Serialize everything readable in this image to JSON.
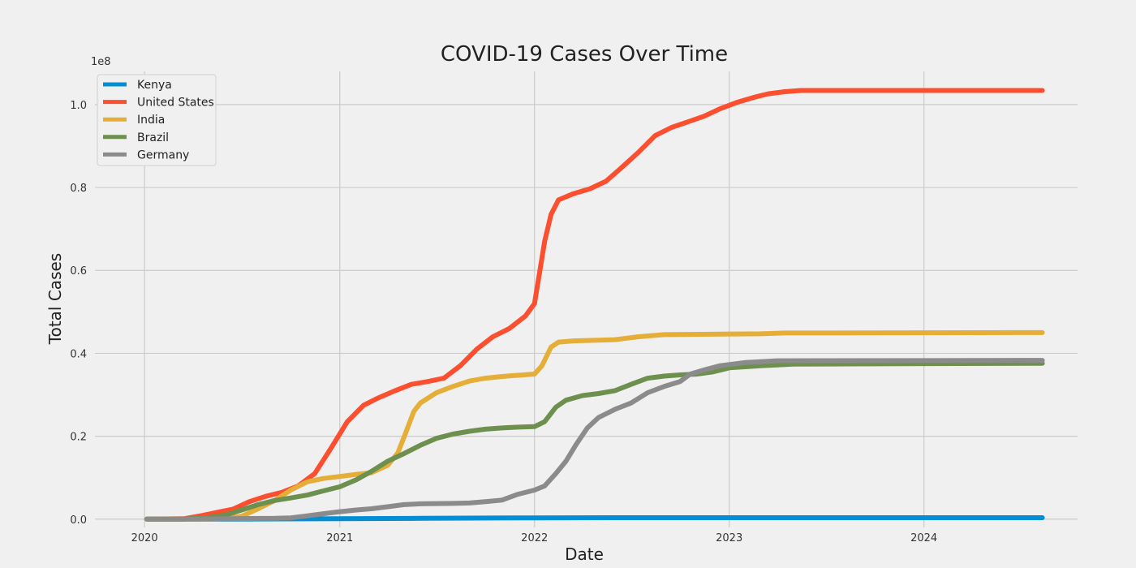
{
  "chart_data": {
    "type": "line",
    "title": "COVID-19 Cases Over Time",
    "xlabel": "Date",
    "ylabel": "Total Cases",
    "y_offset_label": "1e8",
    "grid": true,
    "legend_position": "top-left",
    "xlim": [
      "2019-09-30",
      "2024-10-15"
    ],
    "ylim": [
      -0.02,
      1.08
    ],
    "x_ticks": [
      {
        "date": "2020-01-01",
        "label": "2020"
      },
      {
        "date": "2021-01-01",
        "label": "2021"
      },
      {
        "date": "2022-01-01",
        "label": "2022"
      },
      {
        "date": "2023-01-01",
        "label": "2023"
      },
      {
        "date": "2024-01-01",
        "label": "2024"
      }
    ],
    "y_ticks": [
      {
        "value": 0.0,
        "label": "0.0"
      },
      {
        "value": 0.2,
        "label": "0.2"
      },
      {
        "value": 0.4,
        "label": "0.4"
      },
      {
        "value": 0.6,
        "label": "0.6"
      },
      {
        "value": 0.8,
        "label": "0.8"
      },
      {
        "value": 1.0,
        "label": "1.0"
      }
    ],
    "series": [
      {
        "name": "Kenya",
        "color": "#008fd5",
        "points": [
          [
            "2020-01-05",
            0.0
          ],
          [
            "2020-06-01",
            0.0
          ],
          [
            "2021-01-01",
            0.001
          ],
          [
            "2021-06-01",
            0.002
          ],
          [
            "2022-01-01",
            0.003
          ],
          [
            "2022-06-01",
            0.0034
          ],
          [
            "2023-01-01",
            0.0034
          ],
          [
            "2024-08-10",
            0.0034
          ]
        ]
      },
      {
        "name": "United States",
        "color": "#fc4f30",
        "points": [
          [
            "2020-01-05",
            0.0
          ],
          [
            "2020-03-15",
            0.001
          ],
          [
            "2020-04-15",
            0.008
          ],
          [
            "2020-05-15",
            0.016
          ],
          [
            "2020-06-15",
            0.024
          ],
          [
            "2020-07-15",
            0.042
          ],
          [
            "2020-08-15",
            0.055
          ],
          [
            "2020-09-15",
            0.065
          ],
          [
            "2020-10-15",
            0.08
          ],
          [
            "2020-11-15",
            0.11
          ],
          [
            "2020-12-15",
            0.17
          ],
          [
            "2021-01-15",
            0.235
          ],
          [
            "2021-02-15",
            0.275
          ],
          [
            "2021-03-15",
            0.293
          ],
          [
            "2021-04-15",
            0.31
          ],
          [
            "2021-05-15",
            0.325
          ],
          [
            "2021-06-15",
            0.332
          ],
          [
            "2021-07-15",
            0.34
          ],
          [
            "2021-08-15",
            0.37
          ],
          [
            "2021-09-15",
            0.41
          ],
          [
            "2021-10-15",
            0.44
          ],
          [
            "2021-11-15",
            0.46
          ],
          [
            "2021-12-15",
            0.49
          ],
          [
            "2022-01-01",
            0.52
          ],
          [
            "2022-01-10",
            0.59
          ],
          [
            "2022-01-20",
            0.67
          ],
          [
            "2022-02-01",
            0.735
          ],
          [
            "2022-02-15",
            0.77
          ],
          [
            "2022-03-15",
            0.785
          ],
          [
            "2022-04-15",
            0.797
          ],
          [
            "2022-05-15",
            0.815
          ],
          [
            "2022-06-15",
            0.85
          ],
          [
            "2022-07-15",
            0.885
          ],
          [
            "2022-08-15",
            0.925
          ],
          [
            "2022-09-15",
            0.945
          ],
          [
            "2022-10-15",
            0.958
          ],
          [
            "2022-11-15",
            0.972
          ],
          [
            "2022-12-15",
            0.99
          ],
          [
            "2023-01-15",
            1.005
          ],
          [
            "2023-02-15",
            1.017
          ],
          [
            "2023-03-15",
            1.026
          ],
          [
            "2023-04-15",
            1.031
          ],
          [
            "2023-05-15",
            1.034
          ],
          [
            "2024-08-10",
            1.034
          ]
        ]
      },
      {
        "name": "India",
        "color": "#e5ae38",
        "points": [
          [
            "2020-01-05",
            0.0
          ],
          [
            "2020-05-01",
            0.0
          ],
          [
            "2020-06-01",
            0.002
          ],
          [
            "2020-07-01",
            0.007
          ],
          [
            "2020-08-01",
            0.025
          ],
          [
            "2020-09-01",
            0.045
          ],
          [
            "2020-10-01",
            0.07
          ],
          [
            "2020-11-01",
            0.09
          ],
          [
            "2020-12-01",
            0.098
          ],
          [
            "2021-01-01",
            0.103
          ],
          [
            "2021-02-01",
            0.108
          ],
          [
            "2021-03-01",
            0.112
          ],
          [
            "2021-04-01",
            0.13
          ],
          [
            "2021-04-20",
            0.16
          ],
          [
            "2021-05-05",
            0.21
          ],
          [
            "2021-05-20",
            0.26
          ],
          [
            "2021-06-01",
            0.28
          ],
          [
            "2021-07-01",
            0.305
          ],
          [
            "2021-08-01",
            0.32
          ],
          [
            "2021-09-01",
            0.333
          ],
          [
            "2021-10-01",
            0.34
          ],
          [
            "2021-11-01",
            0.344
          ],
          [
            "2021-12-01",
            0.347
          ],
          [
            "2022-01-01",
            0.35
          ],
          [
            "2022-01-15",
            0.37
          ],
          [
            "2022-02-01",
            0.415
          ],
          [
            "2022-02-15",
            0.427
          ],
          [
            "2022-03-15",
            0.43
          ],
          [
            "2022-06-01",
            0.433
          ],
          [
            "2022-07-15",
            0.44
          ],
          [
            "2022-09-01",
            0.445
          ],
          [
            "2022-12-01",
            0.446
          ],
          [
            "2023-03-01",
            0.447
          ],
          [
            "2023-04-15",
            0.449
          ],
          [
            "2024-08-10",
            0.45
          ]
        ]
      },
      {
        "name": "Brazil",
        "color": "#6d904f",
        "points": [
          [
            "2020-01-05",
            0.0
          ],
          [
            "2020-03-15",
            0.0
          ],
          [
            "2020-05-01",
            0.004
          ],
          [
            "2020-06-01",
            0.01
          ],
          [
            "2020-07-01",
            0.022
          ],
          [
            "2020-08-01",
            0.035
          ],
          [
            "2020-09-01",
            0.045
          ],
          [
            "2020-10-01",
            0.051
          ],
          [
            "2020-11-01",
            0.058
          ],
          [
            "2020-12-01",
            0.068
          ],
          [
            "2021-01-01",
            0.078
          ],
          [
            "2021-02-01",
            0.095
          ],
          [
            "2021-03-01",
            0.115
          ],
          [
            "2021-04-01",
            0.14
          ],
          [
            "2021-05-01",
            0.158
          ],
          [
            "2021-06-01",
            0.178
          ],
          [
            "2021-07-01",
            0.195
          ],
          [
            "2021-08-01",
            0.205
          ],
          [
            "2021-09-01",
            0.212
          ],
          [
            "2021-10-01",
            0.217
          ],
          [
            "2021-11-01",
            0.22
          ],
          [
            "2021-12-01",
            0.222
          ],
          [
            "2022-01-01",
            0.223
          ],
          [
            "2022-01-20",
            0.235
          ],
          [
            "2022-02-10",
            0.27
          ],
          [
            "2022-03-01",
            0.287
          ],
          [
            "2022-04-01",
            0.298
          ],
          [
            "2022-05-01",
            0.303
          ],
          [
            "2022-06-01",
            0.31
          ],
          [
            "2022-07-01",
            0.325
          ],
          [
            "2022-08-01",
            0.34
          ],
          [
            "2022-09-01",
            0.345
          ],
          [
            "2022-10-01",
            0.348
          ],
          [
            "2022-11-01",
            0.35
          ],
          [
            "2022-12-01",
            0.355
          ],
          [
            "2023-01-01",
            0.365
          ],
          [
            "2023-03-01",
            0.37
          ],
          [
            "2023-05-01",
            0.374
          ],
          [
            "2024-08-10",
            0.376
          ]
        ]
      },
      {
        "name": "Germany",
        "color": "#8b8b8b",
        "points": [
          [
            "2020-01-05",
            0.0
          ],
          [
            "2020-03-01",
            0.0
          ],
          [
            "2020-06-01",
            0.001
          ],
          [
            "2020-09-01",
            0.002
          ],
          [
            "2020-10-01",
            0.003
          ],
          [
            "2020-11-01",
            0.008
          ],
          [
            "2020-12-01",
            0.013
          ],
          [
            "2021-01-01",
            0.018
          ],
          [
            "2021-02-01",
            0.022
          ],
          [
            "2021-03-01",
            0.025
          ],
          [
            "2021-04-01",
            0.03
          ],
          [
            "2021-05-01",
            0.035
          ],
          [
            "2021-06-01",
            0.037
          ],
          [
            "2021-08-01",
            0.038
          ],
          [
            "2021-09-01",
            0.039
          ],
          [
            "2021-10-01",
            0.042
          ],
          [
            "2021-11-01",
            0.046
          ],
          [
            "2021-12-01",
            0.06
          ],
          [
            "2022-01-01",
            0.07
          ],
          [
            "2022-01-20",
            0.08
          ],
          [
            "2022-02-10",
            0.11
          ],
          [
            "2022-03-01",
            0.14
          ],
          [
            "2022-03-20",
            0.18
          ],
          [
            "2022-04-10",
            0.22
          ],
          [
            "2022-05-01",
            0.245
          ],
          [
            "2022-06-01",
            0.265
          ],
          [
            "2022-07-01",
            0.28
          ],
          [
            "2022-08-01",
            0.305
          ],
          [
            "2022-09-01",
            0.32
          ],
          [
            "2022-10-01",
            0.332
          ],
          [
            "2022-10-20",
            0.35
          ],
          [
            "2022-11-15",
            0.36
          ],
          [
            "2022-12-15",
            0.37
          ],
          [
            "2023-02-01",
            0.378
          ],
          [
            "2023-04-01",
            0.382
          ],
          [
            "2024-08-10",
            0.383
          ]
        ]
      }
    ]
  }
}
